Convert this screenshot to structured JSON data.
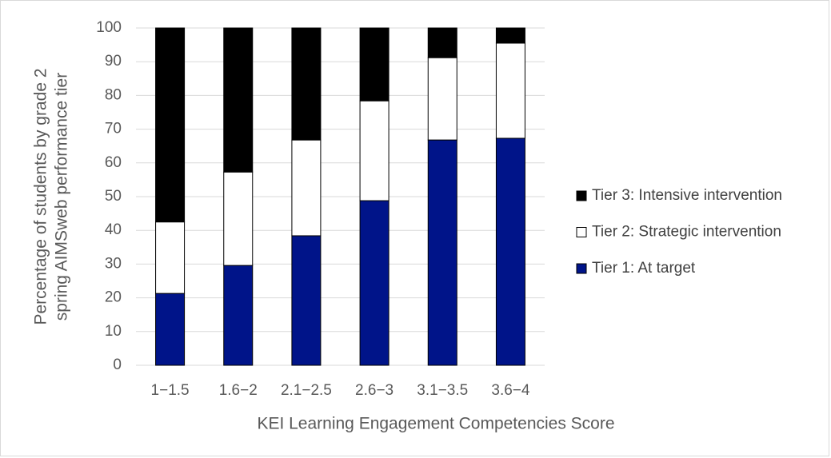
{
  "chart_data": {
    "type": "stacked_bar",
    "ylabel": [
      "Percentage of students by grade 2",
      "spring AIMSweb performance tier"
    ],
    "xlabel": "KEI Learning Engagement Competencies Score",
    "categories": [
      "1−1.5",
      "1.6−2",
      "2.1−2.5",
      "2.6−3",
      "3.1−3.5",
      "3.6−4"
    ],
    "series": [
      {
        "name": "Tier 1: At target",
        "color": "#001489",
        "values": [
          21.3,
          29.6,
          38.4,
          48.8,
          66.8,
          67.3
        ]
      },
      {
        "name": "Tier 2: Strategic intervention",
        "color": "#ffffff",
        "values": [
          21.2,
          27.7,
          28.4,
          29.6,
          24.4,
          28.2
        ]
      },
      {
        "name": "Tier 3: Intensive intervention",
        "color": "#000000",
        "values": [
          57.5,
          42.7,
          33.2,
          21.6,
          8.8,
          4.5
        ]
      }
    ],
    "ylim": [
      0,
      100
    ],
    "yticks": [
      0,
      10,
      20,
      30,
      40,
      50,
      60,
      70,
      80,
      90,
      100
    ],
    "grid": true,
    "legend": "right"
  }
}
